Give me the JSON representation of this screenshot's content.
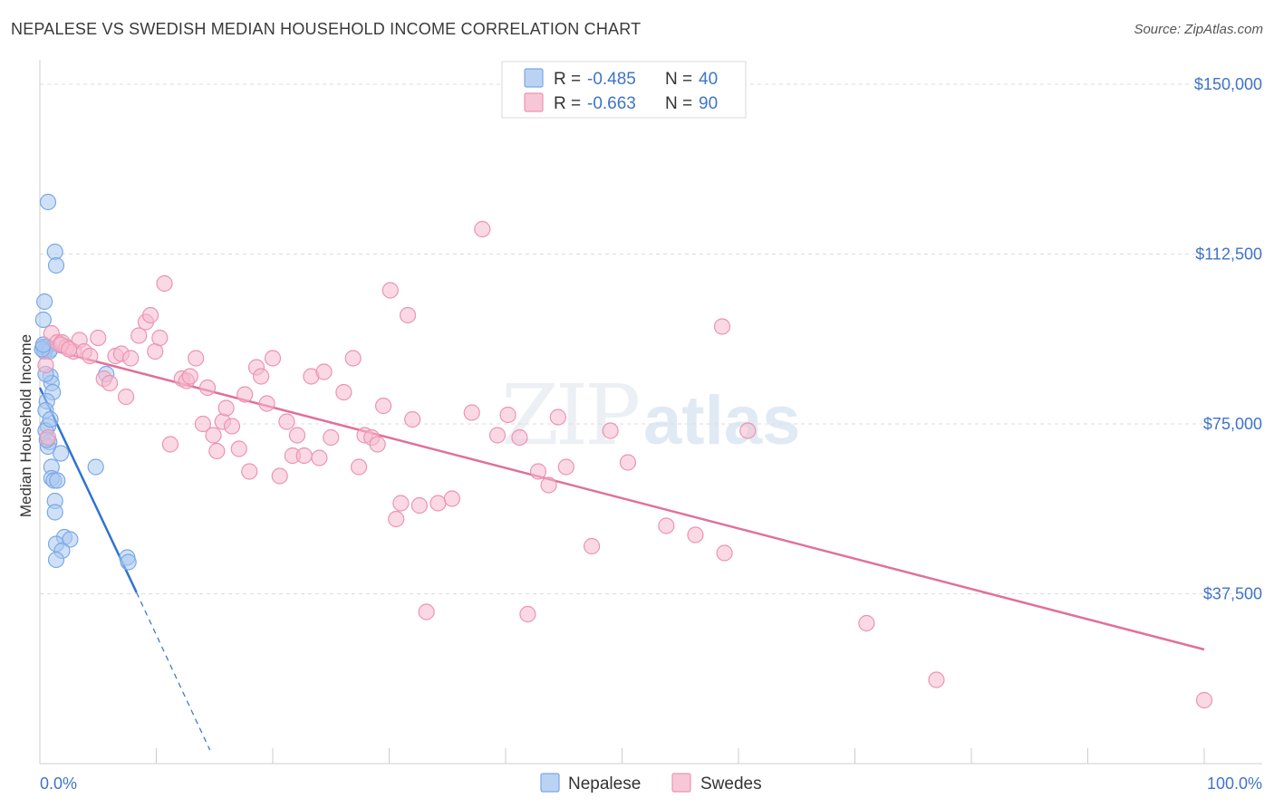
{
  "title": "NEPALESE VS SWEDISH MEDIAN HOUSEHOLD INCOME CORRELATION CHART",
  "source": "Source: ZipAtlas.com",
  "colors": {
    "nepalese_fill": "#a9c8f0",
    "nepalese_stroke": "#7aa8e6",
    "nepalese_line": "#2f72d0",
    "swedes_fill": "#f5b9cd",
    "swedes_stroke": "#ec93b2",
    "swedes_line": "#e0709a",
    "axis_text": "#3f74c8",
    "grid": "#dddddd"
  },
  "legend": {
    "rows": [
      {
        "series": "nepalese",
        "r_label": "R = ",
        "r_value": "-0.485",
        "n_label": "N = ",
        "n_value": "40"
      },
      {
        "series": "swedes",
        "r_label": "R = ",
        "r_value": "-0.663",
        "n_label": "N = ",
        "n_value": "90"
      }
    ]
  },
  "chart_data": {
    "type": "scatter",
    "title": "NEPALESE VS SWEDISH MEDIAN HOUSEHOLD INCOME CORRELATION CHART",
    "xlabel": "",
    "ylabel": "Median Household Income",
    "xlim": [
      0,
      100
    ],
    "ylim": [
      0,
      153000
    ],
    "x_tick_labels": [
      "0.0%",
      "100.0%"
    ],
    "y_ticks": [
      37500,
      75000,
      112500,
      150000
    ],
    "y_tick_labels": [
      "$37,500",
      "$75,000",
      "$112,500",
      "$150,000"
    ],
    "grid": true,
    "legend_position": "bottom-center",
    "watermark": "ZIPatlas",
    "series": [
      {
        "name": "Nepalese",
        "key": "nepalese",
        "points": [
          [
            0.7,
            124000
          ],
          [
            1.3,
            113000
          ],
          [
            1.4,
            110000
          ],
          [
            0.4,
            102000
          ],
          [
            0.3,
            98000
          ],
          [
            0.3,
            92000
          ],
          [
            0.6,
            92000
          ],
          [
            0.9,
            91500
          ],
          [
            0.4,
            91000
          ],
          [
            0.8,
            91000
          ],
          [
            0.2,
            91500
          ],
          [
            5.7,
            86000
          ],
          [
            0.9,
            85500
          ],
          [
            1.0,
            84000
          ],
          [
            1.1,
            82000
          ],
          [
            0.6,
            80000
          ],
          [
            0.5,
            78000
          ],
          [
            0.7,
            74500
          ],
          [
            0.5,
            73500
          ],
          [
            0.8,
            71000
          ],
          [
            0.7,
            70000
          ],
          [
            1.8,
            68500
          ],
          [
            4.8,
            65500
          ],
          [
            1.0,
            65500
          ],
          [
            1.0,
            63000
          ],
          [
            1.2,
            62500
          ],
          [
            1.5,
            62500
          ],
          [
            1.3,
            58000
          ],
          [
            1.3,
            55500
          ],
          [
            2.1,
            50000
          ],
          [
            2.6,
            49500
          ],
          [
            1.4,
            48500
          ],
          [
            1.9,
            47000
          ],
          [
            1.4,
            45000
          ],
          [
            7.5,
            45500
          ],
          [
            7.6,
            44500
          ],
          [
            0.5,
            86000
          ],
          [
            0.9,
            76000
          ],
          [
            0.3,
            92500
          ],
          [
            0.6,
            71500
          ]
        ],
        "trend_solid": {
          "x": [
            0,
            8.3
          ],
          "y": [
            83000,
            37800
          ]
        },
        "trend_dashed": {
          "x": [
            8.3,
            14.6
          ],
          "y": [
            37800,
            3000
          ]
        }
      },
      {
        "name": "Swedes",
        "key": "swedes",
        "points": [
          [
            0.5,
            88000
          ],
          [
            1.0,
            95000
          ],
          [
            1.5,
            93000
          ],
          [
            1.9,
            93000
          ],
          [
            2.3,
            92000
          ],
          [
            2.9,
            91000
          ],
          [
            3.4,
            93500
          ],
          [
            3.8,
            91000
          ],
          [
            4.3,
            90000
          ],
          [
            5.0,
            94000
          ],
          [
            5.5,
            85000
          ],
          [
            6.0,
            84000
          ],
          [
            6.5,
            90000
          ],
          [
            7.0,
            90500
          ],
          [
            7.4,
            81000
          ],
          [
            7.8,
            89500
          ],
          [
            8.5,
            94500
          ],
          [
            9.1,
            97500
          ],
          [
            9.5,
            99000
          ],
          [
            9.9,
            91000
          ],
          [
            10.3,
            94000
          ],
          [
            10.7,
            106000
          ],
          [
            11.2,
            70500
          ],
          [
            12.2,
            85000
          ],
          [
            12.6,
            84500
          ],
          [
            12.9,
            85500
          ],
          [
            13.4,
            89500
          ],
          [
            14.0,
            75000
          ],
          [
            14.4,
            83000
          ],
          [
            14.9,
            72500
          ],
          [
            15.2,
            69000
          ],
          [
            15.7,
            75500
          ],
          [
            16.0,
            78500
          ],
          [
            16.5,
            74500
          ],
          [
            17.1,
            69500
          ],
          [
            17.6,
            81500
          ],
          [
            18.0,
            64500
          ],
          [
            18.6,
            87500
          ],
          [
            19.0,
            85500
          ],
          [
            19.5,
            79500
          ],
          [
            20.0,
            89500
          ],
          [
            20.6,
            63500
          ],
          [
            21.2,
            75500
          ],
          [
            21.7,
            68000
          ],
          [
            22.1,
            72500
          ],
          [
            22.7,
            68000
          ],
          [
            23.3,
            85500
          ],
          [
            24.0,
            67500
          ],
          [
            24.4,
            86500
          ],
          [
            25.0,
            72000
          ],
          [
            26.1,
            82000
          ],
          [
            26.9,
            89500
          ],
          [
            27.4,
            65500
          ],
          [
            27.9,
            72500
          ],
          [
            28.5,
            72000
          ],
          [
            29.0,
            70500
          ],
          [
            29.5,
            79000
          ],
          [
            30.1,
            104500
          ],
          [
            30.6,
            54000
          ],
          [
            31.0,
            57500
          ],
          [
            31.6,
            99000
          ],
          [
            32.0,
            76000
          ],
          [
            32.6,
            57000
          ],
          [
            33.2,
            33500
          ],
          [
            34.2,
            57500
          ],
          [
            35.4,
            58500
          ],
          [
            37.1,
            77500
          ],
          [
            38.0,
            118000
          ],
          [
            39.3,
            72500
          ],
          [
            40.2,
            77000
          ],
          [
            41.2,
            72000
          ],
          [
            41.9,
            33000
          ],
          [
            42.8,
            64500
          ],
          [
            43.7,
            61500
          ],
          [
            44.5,
            76500
          ],
          [
            45.2,
            65500
          ],
          [
            47.4,
            48000
          ],
          [
            49.0,
            73500
          ],
          [
            50.5,
            66500
          ],
          [
            53.8,
            52500
          ],
          [
            56.3,
            50500
          ],
          [
            58.6,
            96500
          ],
          [
            58.8,
            46500
          ],
          [
            60.8,
            73500
          ],
          [
            71.0,
            31000
          ],
          [
            77.0,
            18500
          ],
          [
            100.0,
            14000
          ],
          [
            1.8,
            92500
          ],
          [
            2.5,
            91500
          ],
          [
            0.7,
            72000
          ]
        ],
        "trend": {
          "x": [
            0,
            100
          ],
          "y": [
            92000,
            25200
          ]
        }
      }
    ]
  },
  "bottom_legend": {
    "items": [
      {
        "key": "nepalese",
        "label": "Nepalese"
      },
      {
        "key": "swedes",
        "label": "Swedes"
      }
    ]
  }
}
